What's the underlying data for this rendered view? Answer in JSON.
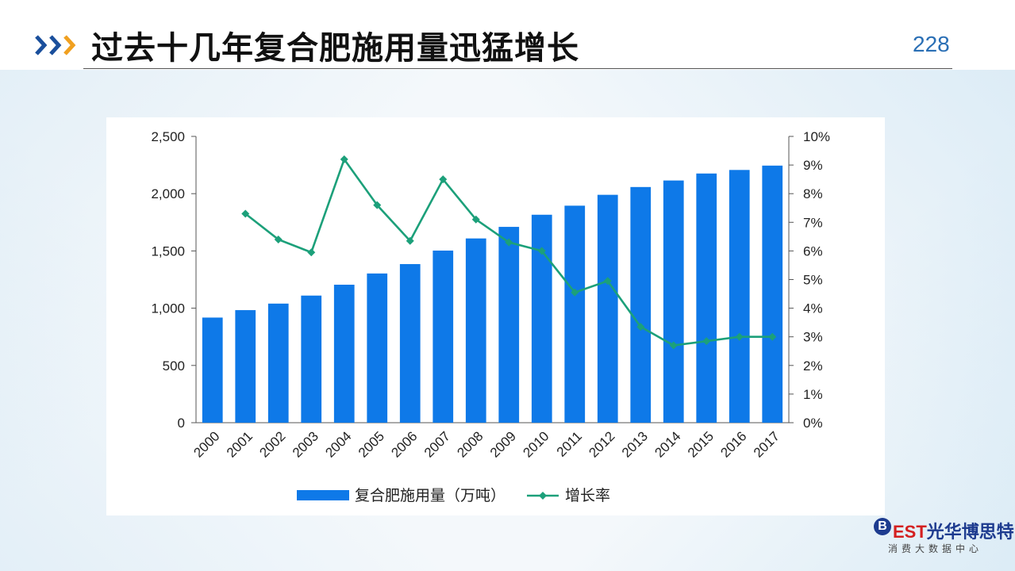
{
  "header": {
    "title": "过去十几年复合肥施用量迅猛增长",
    "page_number": "228"
  },
  "colors": {
    "bar": "#0e79e8",
    "line": "#1ca07a",
    "title_accent": "#1a4f9c",
    "chevron_orange": "#f0a020"
  },
  "chart_data": {
    "type": "bar",
    "categories": [
      "2000",
      "2001",
      "2002",
      "2003",
      "2004",
      "2005",
      "2006",
      "2007",
      "2008",
      "2009",
      "2010",
      "2011",
      "2012",
      "2013",
      "2014",
      "2015",
      "2016",
      "2017"
    ],
    "series": [
      {
        "name": "复合肥施用量（万吨）",
        "type": "bar",
        "axis": "left",
        "values": [
          918,
          983,
          1040,
          1110,
          1205,
          1303,
          1385,
          1503,
          1609,
          1710,
          1816,
          1895,
          1990,
          2058,
          2115,
          2176,
          2207,
          2245
        ]
      },
      {
        "name": "增长率",
        "type": "line",
        "axis": "right",
        "values": [
          null,
          7.3,
          6.4,
          5.95,
          9.2,
          7.6,
          6.35,
          8.5,
          7.1,
          6.3,
          6.0,
          4.55,
          4.95,
          3.35,
          2.7,
          2.85,
          3.0,
          3.0
        ]
      }
    ],
    "ylim_left": [
      0,
      2500
    ],
    "yticks_left": [
      "0",
      "500",
      "1,000",
      "1,500",
      "2,000",
      "2,500"
    ],
    "ylim_right": [
      0,
      10
    ],
    "yticks_right": [
      "0%",
      "1%",
      "2%",
      "3%",
      "4%",
      "5%",
      "6%",
      "7%",
      "8%",
      "9%",
      "10%"
    ],
    "legend_position": "bottom"
  },
  "logo": {
    "b": "B",
    "est": "EST",
    "cn": "光华博思特",
    "sub": "消费大数据中心"
  }
}
